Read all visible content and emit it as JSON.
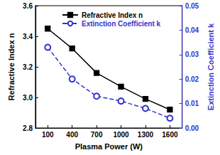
{
  "chart_data": {
    "type": "line",
    "xlabel": "Plasma Power (W)",
    "ylabel": "Refractive Index n",
    "y2label": "Extinction Coefficient k",
    "categories": [
      "100",
      "400",
      "700",
      "1000",
      "1300",
      "1600"
    ],
    "ylim": [
      2.8,
      3.6
    ],
    "yticks": [
      2.8,
      {
        "value": 3,
        "label": "3.0"
      },
      3.2,
      3.4,
      3.6
    ],
    "y2lim": [
      0,
      0.05
    ],
    "y2ticks": [
      {
        "value": 0,
        "label": "0.00"
      },
      {
        "value": 0.01,
        "label": "0.01"
      },
      {
        "value": 0.02,
        "label": "0.02"
      },
      {
        "value": 0.03,
        "label": "0.03"
      },
      {
        "value": 0.04,
        "label": "0.04"
      },
      {
        "value": 0.05,
        "label": "0.05"
      }
    ],
    "series": [
      {
        "name": "Refractive Index n",
        "color": "#000000",
        "marker": "square",
        "line_style": "solid",
        "values": [
          3.45,
          3.32,
          3.16,
          3.07,
          2.99,
          2.92
        ]
      },
      {
        "name": "Extinction Coefficient k",
        "color": "#3333cc",
        "marker": "open_circle",
        "line_style": "dashed",
        "axis": "y2",
        "values": [
          0.033,
          0.02,
          0.013,
          0.011,
          0.008,
          0.004
        ]
      }
    ],
    "legend": "upper left",
    "grid": false
  }
}
